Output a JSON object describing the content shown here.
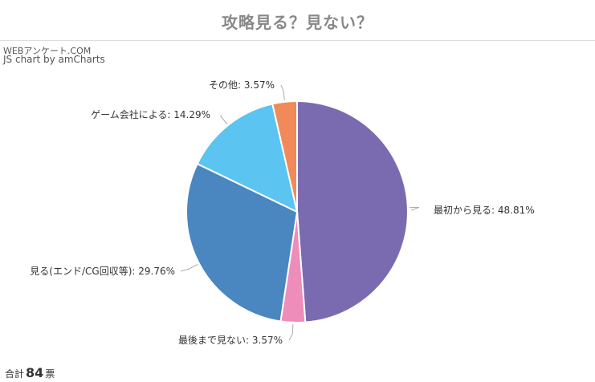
{
  "page": {
    "title": "攻略見る？見ない？",
    "credit_site": "WEBアンケート.COM",
    "credit_lib": "JS chart by amCharts",
    "total_prefix": "合計",
    "total_value": "84",
    "total_suffix": "票"
  },
  "chart_data": {
    "type": "pie",
    "title": "攻略見る？見ない？",
    "slices": [
      {
        "label": "最初から見る",
        "value": 48.81,
        "display": "最初から見る: 48.81%",
        "color": "#7a6bb0"
      },
      {
        "label": "最後まで見ない",
        "value": 3.57,
        "display": "最後まで見ない: 3.57%",
        "color": "#ee8cba"
      },
      {
        "label": "見る(エンド/CG回収等)",
        "value": 29.76,
        "display": "見る(エンド/CG回収等): 29.76%",
        "color": "#4a86c0"
      },
      {
        "label": "ゲーム会社による",
        "value": 14.29,
        "display": "ゲーム会社による: 14.29%",
        "color": "#5bc4f0"
      },
      {
        "label": "その他",
        "value": 3.57,
        "display": "その他: 3.57%",
        "color": "#f08a58"
      }
    ]
  }
}
